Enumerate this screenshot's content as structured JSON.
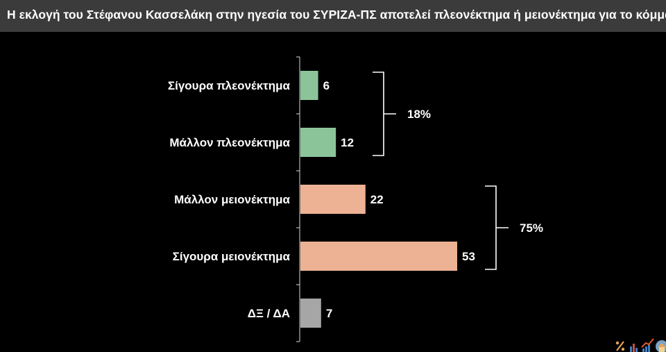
{
  "header": {
    "title": "Η εκλογή του Στέφανου Κασσελάκη στην ηγεσία του ΣΥΡΙΖΑ-ΠΣ αποτελεί πλεονέκτημα ή μειονέκτημα για το κόμμα;"
  },
  "chart_data": {
    "type": "bar",
    "orientation": "horizontal",
    "categories": [
      "Σίγουρα πλεονέκτημα",
      "Μάλλον πλεονέκτημα",
      "Μάλλον μειονέκτημα",
      "Σίγουρα μειονέκτημα",
      "ΔΞ / ΔΑ"
    ],
    "values": [
      6,
      12,
      22,
      53,
      7
    ],
    "colors": [
      "#8cc49a",
      "#8cc49a",
      "#edb293",
      "#edb293",
      "#a6a6a6"
    ],
    "value_labels": [
      "6",
      "12",
      "22",
      "53",
      "7"
    ],
    "groups": [
      {
        "label": "18%",
        "from": 0,
        "to": 1
      },
      {
        "label": "75%",
        "from": 2,
        "to": 3
      }
    ],
    "xlim": [
      0,
      53
    ],
    "grid": false,
    "axis_color": "#d9d9d9",
    "bracket_color": "#ffffff"
  },
  "logo": {
    "icons": [
      "percent-icon",
      "bar-chart-icon",
      "trend-up-icon",
      "house-icon"
    ]
  }
}
